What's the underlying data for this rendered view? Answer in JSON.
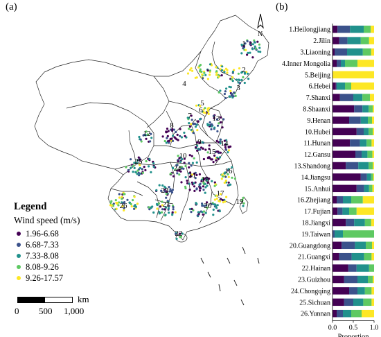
{
  "panels": {
    "a_label": "(a)",
    "b_label": "(b)"
  },
  "colors": {
    "c1": "#440154",
    "c2": "#3b528b",
    "c3": "#21918c",
    "c4": "#5ec962",
    "c5": "#fde725"
  },
  "map": {
    "legend_title": "Legend",
    "legend_subtitle": "Wind speed (m/s)",
    "classes": [
      {
        "label": "1.96-6.68",
        "color": "#440154"
      },
      {
        "label": "6.68-7.33",
        "color": "#3b528b"
      },
      {
        "label": "7.33-8.08",
        "color": "#21918c"
      },
      {
        "label": "8.08-9.26",
        "color": "#5ec962"
      },
      {
        "label": "9.26-17.57",
        "color": "#fde725"
      }
    ],
    "scale": {
      "unit": "km",
      "ticks": [
        "0",
        "500",
        "1,000"
      ]
    },
    "north_label": "N",
    "region_numbers": [
      "1",
      "2",
      "3",
      "4",
      "5",
      "6",
      "7",
      "8",
      "9",
      "10",
      "11",
      "12",
      "13",
      "14",
      "15",
      "16",
      "17",
      "18",
      "19",
      "20",
      "21",
      "22",
      "23",
      "24",
      "25",
      "26"
    ]
  },
  "chart_data": {
    "type": "bar",
    "orientation": "horizontal-stacked",
    "xlabel": "Proportion",
    "xlim": [
      0,
      1
    ],
    "xticks": [
      "0.0",
      "0.5",
      "1.0"
    ],
    "categories": [
      "1.Heilongjiang",
      "2.Jilin",
      "3.Liaoning",
      "4.Inner Mongolia",
      "5.Beijing",
      "6.Hebei",
      "7.Shanxi",
      "8.Shaanxi",
      "9.Henan",
      "10.Hubei",
      "11.Hunan",
      "12.Gansu",
      "13.Shandong",
      "14.Jiangsu",
      "15.Anhui",
      "16.Zhejiang",
      "17.Fujian",
      "18.Jiangxi",
      "19.Taiwan",
      "20.Guangdong",
      "21.Guangxi",
      "22.Hainan",
      "23.Guizhou",
      "24.Chongqing",
      "25.Sichuan",
      "26.Yunnan"
    ],
    "series": [
      {
        "name": "1.96-6.68",
        "values": [
          0.12,
          0.16,
          0.05,
          0.1,
          0.0,
          0.08,
          0.18,
          0.52,
          0.4,
          0.58,
          0.42,
          0.55,
          0.32,
          0.68,
          0.58,
          0.1,
          0.12,
          0.32,
          0.0,
          0.22,
          0.16,
          0.38,
          0.28,
          0.4,
          0.28,
          0.1
        ]
      },
      {
        "name": "6.68-7.33",
        "values": [
          0.3,
          0.2,
          0.3,
          0.1,
          0.0,
          0.02,
          0.32,
          0.2,
          0.28,
          0.17,
          0.24,
          0.15,
          0.3,
          0.15,
          0.18,
          0.15,
          0.12,
          0.2,
          0.05,
          0.32,
          0.3,
          0.2,
          0.32,
          0.2,
          0.22,
          0.15
        ]
      },
      {
        "name": "7.33-8.08",
        "values": [
          0.33,
          0.32,
          0.38,
          0.1,
          0.0,
          0.2,
          0.22,
          0.15,
          0.17,
          0.12,
          0.16,
          0.14,
          0.25,
          0.1,
          0.12,
          0.2,
          0.16,
          0.26,
          0.2,
          0.26,
          0.3,
          0.3,
          0.25,
          0.18,
          0.24,
          0.2
        ]
      },
      {
        "name": "8.08-9.26",
        "values": [
          0.17,
          0.2,
          0.2,
          0.3,
          0.0,
          0.15,
          0.18,
          0.1,
          0.1,
          0.1,
          0.12,
          0.12,
          0.1,
          0.05,
          0.08,
          0.28,
          0.18,
          0.15,
          0.75,
          0.15,
          0.18,
          0.12,
          0.12,
          0.16,
          0.2,
          0.25
        ]
      },
      {
        "name": "9.26-17.57",
        "values": [
          0.08,
          0.12,
          0.07,
          0.4,
          1.0,
          0.55,
          0.1,
          0.03,
          0.05,
          0.03,
          0.06,
          0.04,
          0.03,
          0.02,
          0.04,
          0.27,
          0.42,
          0.07,
          0.0,
          0.05,
          0.06,
          0.0,
          0.03,
          0.06,
          0.06,
          0.3
        ]
      }
    ]
  }
}
